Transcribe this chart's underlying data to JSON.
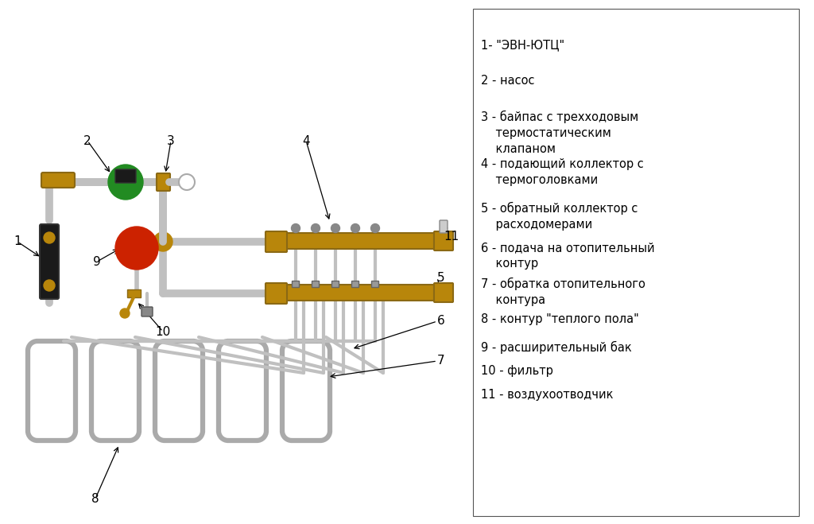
{
  "background_color": "#ffffff",
  "legend_items": [
    "1- \"ЭВН-ЮТЦ\"",
    "2 - насос",
    "3 - байпас с трехходовым\n    термостатическим\n    клапаном",
    "4 - подающий коллектор с\n    термоголовками",
    "5 - обратный коллектор с\n    расходомерами",
    "6 - подача на отопительный\n    контур",
    "7 - обратка отопительного\n    контура",
    "8 - контур \"теплого пола\"",
    "9 - расширительный бак",
    "10 - фильтр",
    "11 - воздухоотводчик"
  ],
  "pipe_color": "#c0c0c0",
  "brass_color": "#b8860b",
  "green_ball_color": "#228B22",
  "red_ball_color": "#cc2200",
  "black_device_color": "#222222",
  "label_color": "#000000",
  "font_size": 11
}
